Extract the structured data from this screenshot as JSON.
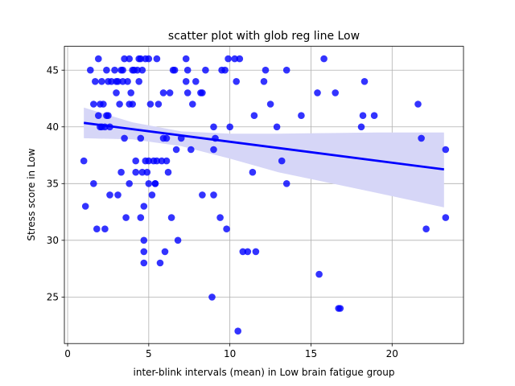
{
  "chart_data": {
    "type": "scatter",
    "title": "scatter plot with glob reg line Low",
    "xlabel": "inter-blink intervals (mean) in Low brain fatigue group",
    "ylabel": "Stress score in Low",
    "xlim": [
      -0.2,
      24.4
    ],
    "ylim": [
      20.9,
      47.1
    ],
    "xticks": [
      0,
      5,
      10,
      15,
      20
    ],
    "yticks": [
      25,
      30,
      35,
      40,
      45
    ],
    "grid": true,
    "point_color": "#0000ff",
    "line_color": "#0000ff",
    "band_color": "#d6d6f7",
    "regression": {
      "x_start": 1.0,
      "y_start": 40.35,
      "x_end": 23.2,
      "y_end": 36.25
    },
    "confidence_band": {
      "x": [
        1.0,
        4.0,
        7.0,
        10.0,
        13.0,
        16.0,
        19.0,
        23.2
      ],
      "upper": [
        41.7,
        40.4,
        39.6,
        39.4,
        39.4,
        39.45,
        39.5,
        39.5
      ],
      "lower": [
        39.0,
        38.9,
        38.3,
        37.2,
        36.0,
        35.1,
        34.2,
        32.9
      ]
    },
    "points": [
      [
        1.0,
        37
      ],
      [
        1.1,
        33
      ],
      [
        1.4,
        45
      ],
      [
        1.6,
        35
      ],
      [
        1.6,
        42
      ],
      [
        1.7,
        44
      ],
      [
        1.8,
        31
      ],
      [
        1.9,
        46
      ],
      [
        1.9,
        41
      ],
      [
        2.0,
        40
      ],
      [
        2.0,
        42
      ],
      [
        2.1,
        44
      ],
      [
        2.1,
        40
      ],
      [
        2.2,
        42
      ],
      [
        2.3,
        31
      ],
      [
        2.3,
        40
      ],
      [
        2.4,
        45
      ],
      [
        2.4,
        41
      ],
      [
        2.5,
        44
      ],
      [
        2.5,
        41
      ],
      [
        2.6,
        34
      ],
      [
        2.6,
        40
      ],
      [
        2.7,
        44
      ],
      [
        2.9,
        45
      ],
      [
        3.0,
        43
      ],
      [
        3.0,
        44
      ],
      [
        3.1,
        34
      ],
      [
        3.1,
        44
      ],
      [
        3.2,
        42
      ],
      [
        3.3,
        45
      ],
      [
        3.3,
        36
      ],
      [
        3.4,
        44
      ],
      [
        3.4,
        45
      ],
      [
        3.5,
        46
      ],
      [
        3.5,
        39
      ],
      [
        3.6,
        32
      ],
      [
        3.7,
        44
      ],
      [
        3.8,
        46
      ],
      [
        3.8,
        42
      ],
      [
        3.8,
        35
      ],
      [
        3.9,
        43
      ],
      [
        4.0,
        42
      ],
      [
        4.0,
        45
      ],
      [
        4.1,
        45
      ],
      [
        4.2,
        36
      ],
      [
        4.2,
        37
      ],
      [
        4.3,
        45
      ],
      [
        4.4,
        46
      ],
      [
        4.4,
        44
      ],
      [
        4.5,
        39
      ],
      [
        4.5,
        32
      ],
      [
        4.5,
        46
      ],
      [
        4.6,
        45
      ],
      [
        4.6,
        36
      ],
      [
        4.7,
        33
      ],
      [
        4.7,
        29
      ],
      [
        4.7,
        30
      ],
      [
        4.7,
        28
      ],
      [
        4.8,
        46
      ],
      [
        4.8,
        37
      ],
      [
        4.9,
        36
      ],
      [
        5.0,
        35
      ],
      [
        5.0,
        46
      ],
      [
        5.0,
        37
      ],
      [
        5.1,
        42
      ],
      [
        5.2,
        34
      ],
      [
        5.3,
        37
      ],
      [
        5.4,
        35
      ],
      [
        5.4,
        35
      ],
      [
        5.5,
        46
      ],
      [
        5.5,
        37
      ],
      [
        5.6,
        42
      ],
      [
        5.7,
        28
      ],
      [
        5.8,
        37
      ],
      [
        5.9,
        43
      ],
      [
        5.9,
        39
      ],
      [
        6.0,
        29
      ],
      [
        6.1,
        37
      ],
      [
        6.1,
        39
      ],
      [
        6.2,
        36
      ],
      [
        6.3,
        43
      ],
      [
        6.4,
        32
      ],
      [
        6.5,
        45
      ],
      [
        6.6,
        45
      ],
      [
        6.7,
        38
      ],
      [
        6.8,
        30
      ],
      [
        7.0,
        39
      ],
      [
        7.3,
        44
      ],
      [
        7.3,
        46
      ],
      [
        7.4,
        45
      ],
      [
        7.4,
        43
      ],
      [
        7.6,
        38
      ],
      [
        7.7,
        42
      ],
      [
        7.9,
        44
      ],
      [
        8.2,
        43
      ],
      [
        8.3,
        34
      ],
      [
        8.3,
        43
      ],
      [
        8.5,
        45
      ],
      [
        8.9,
        25
      ],
      [
        9.0,
        40
      ],
      [
        9.0,
        34
      ],
      [
        9.0,
        38
      ],
      [
        9.1,
        39
      ],
      [
        9.4,
        32
      ],
      [
        9.5,
        45
      ],
      [
        9.7,
        45
      ],
      [
        9.8,
        31
      ],
      [
        9.9,
        46
      ],
      [
        10.0,
        40
      ],
      [
        10.3,
        46
      ],
      [
        10.4,
        44
      ],
      [
        10.5,
        22
      ],
      [
        10.6,
        46
      ],
      [
        10.8,
        29
      ],
      [
        11.1,
        29
      ],
      [
        11.4,
        36
      ],
      [
        11.5,
        41
      ],
      [
        11.6,
        29
      ],
      [
        12.1,
        44
      ],
      [
        12.2,
        45
      ],
      [
        12.5,
        42
      ],
      [
        12.9,
        40
      ],
      [
        13.2,
        37
      ],
      [
        13.5,
        45
      ],
      [
        13.5,
        35
      ],
      [
        14.4,
        41
      ],
      [
        15.4,
        43
      ],
      [
        15.5,
        27
      ],
      [
        15.8,
        46
      ],
      [
        16.5,
        43
      ],
      [
        16.7,
        24
      ],
      [
        16.8,
        24
      ],
      [
        18.1,
        40
      ],
      [
        18.2,
        41
      ],
      [
        18.3,
        44
      ],
      [
        18.9,
        41
      ],
      [
        21.6,
        42
      ],
      [
        21.8,
        39
      ],
      [
        22.1,
        31
      ],
      [
        23.3,
        38
      ],
      [
        23.3,
        32
      ]
    ]
  }
}
